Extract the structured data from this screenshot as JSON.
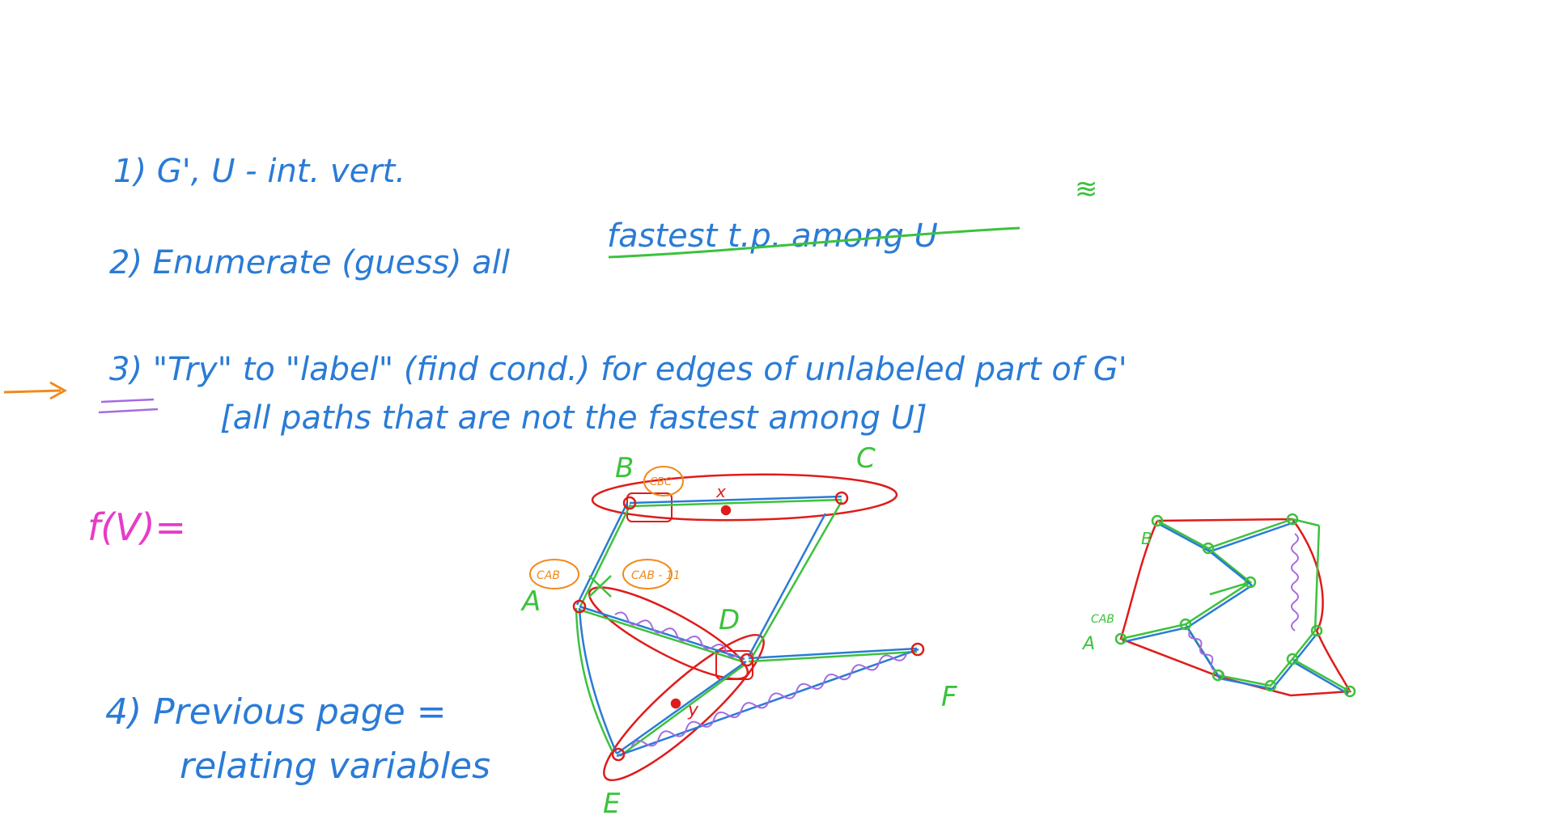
{
  "notes": {
    "line1": "1) G', U - int. vert.",
    "line2_prefix": "2) Enumerate (guess) all",
    "line2_underlined": "fastest t.p. among U",
    "line2_mark": "≋",
    "line3a": "3) \"Try\" to \"label\" (find cond.) for edges of unlabeled part of G'",
    "line3b": "[all paths that are not the fastest among U]",
    "f_label": "f(V)=",
    "line4a": "4) Previous page =",
    "line4b": "relating variables"
  },
  "graph_left": {
    "vertex_labels": [
      "B",
      "C",
      "A",
      "D",
      "E",
      "F"
    ],
    "annotations": [
      "CBC",
      "x",
      "CAB",
      "CAB - 11",
      "y"
    ]
  },
  "graph_right": {
    "vertex_labels": [
      "B",
      "A"
    ],
    "annotations": [
      "CAB"
    ]
  },
  "colors": {
    "blue": "#2a7bd6",
    "green": "#3cc23c",
    "red": "#e01b1b",
    "orange": "#f08a1c",
    "purple": "#a56be0",
    "magenta": "#e63cc8"
  }
}
